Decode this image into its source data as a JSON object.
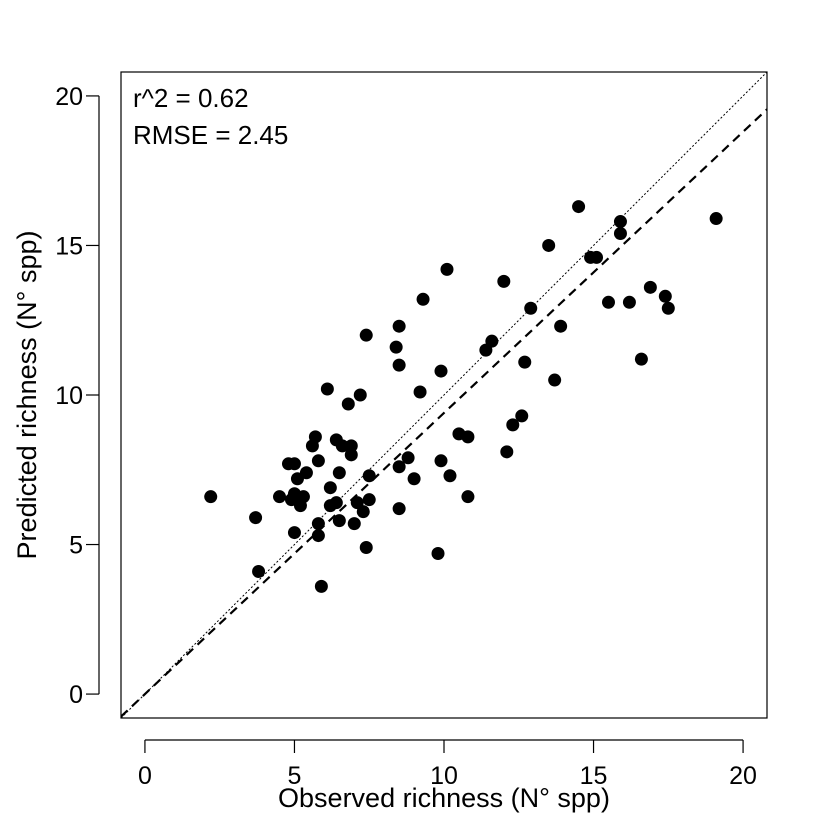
{
  "chart_data": {
    "type": "scatter",
    "xlabel": "Observed richness (N° spp)",
    "ylabel": "Predicted richness (N° spp)",
    "xlim": [
      -0.8,
      20.8
    ],
    "ylim": [
      -0.8,
      20.8
    ],
    "x_ticks": [
      0,
      5,
      10,
      15,
      20
    ],
    "y_ticks": [
      0,
      5,
      10,
      15,
      20
    ],
    "annotations": [
      "r^2 = 0.62",
      "RMSE = 2.45"
    ],
    "reference_lines": [
      {
        "style": "dotted",
        "intercept": 0,
        "slope": 1.0
      },
      {
        "style": "dashed",
        "intercept": 0,
        "slope": 0.94
      }
    ],
    "points": [
      {
        "x": 2.2,
        "y": 6.6
      },
      {
        "x": 3.7,
        "y": 5.9
      },
      {
        "x": 3.8,
        "y": 4.1
      },
      {
        "x": 4.5,
        "y": 6.6
      },
      {
        "x": 4.8,
        "y": 7.7
      },
      {
        "x": 4.9,
        "y": 6.5
      },
      {
        "x": 5.0,
        "y": 6.7
      },
      {
        "x": 5.0,
        "y": 7.7
      },
      {
        "x": 5.0,
        "y": 5.4
      },
      {
        "x": 5.1,
        "y": 7.2
      },
      {
        "x": 5.2,
        "y": 6.3
      },
      {
        "x": 5.3,
        "y": 6.6
      },
      {
        "x": 5.4,
        "y": 7.4
      },
      {
        "x": 5.6,
        "y": 8.3
      },
      {
        "x": 5.7,
        "y": 8.6
      },
      {
        "x": 5.8,
        "y": 7.8
      },
      {
        "x": 5.8,
        "y": 5.7
      },
      {
        "x": 5.8,
        "y": 5.3
      },
      {
        "x": 5.9,
        "y": 3.6
      },
      {
        "x": 6.1,
        "y": 10.2
      },
      {
        "x": 6.2,
        "y": 6.9
      },
      {
        "x": 6.2,
        "y": 6.3
      },
      {
        "x": 6.4,
        "y": 6.4
      },
      {
        "x": 6.4,
        "y": 8.5
      },
      {
        "x": 6.5,
        "y": 7.4
      },
      {
        "x": 6.6,
        "y": 8.3
      },
      {
        "x": 6.5,
        "y": 5.8
      },
      {
        "x": 6.8,
        "y": 9.7
      },
      {
        "x": 6.9,
        "y": 8.3
      },
      {
        "x": 6.9,
        "y": 8.0
      },
      {
        "x": 7.0,
        "y": 5.7
      },
      {
        "x": 7.1,
        "y": 6.4
      },
      {
        "x": 7.2,
        "y": 10.0
      },
      {
        "x": 7.3,
        "y": 6.1
      },
      {
        "x": 7.4,
        "y": 12.0
      },
      {
        "x": 7.4,
        "y": 4.9
      },
      {
        "x": 7.5,
        "y": 7.3
      },
      {
        "x": 7.5,
        "y": 6.5
      },
      {
        "x": 8.4,
        "y": 11.6
      },
      {
        "x": 8.5,
        "y": 12.3
      },
      {
        "x": 8.5,
        "y": 11.0
      },
      {
        "x": 8.5,
        "y": 7.6
      },
      {
        "x": 8.5,
        "y": 6.2
      },
      {
        "x": 8.8,
        "y": 7.9
      },
      {
        "x": 9.0,
        "y": 7.2
      },
      {
        "x": 9.2,
        "y": 10.1
      },
      {
        "x": 9.3,
        "y": 13.2
      },
      {
        "x": 9.8,
        "y": 4.7
      },
      {
        "x": 9.9,
        "y": 10.8
      },
      {
        "x": 9.9,
        "y": 7.8
      },
      {
        "x": 10.1,
        "y": 14.2
      },
      {
        "x": 10.2,
        "y": 7.3
      },
      {
        "x": 10.5,
        "y": 8.7
      },
      {
        "x": 10.8,
        "y": 8.6
      },
      {
        "x": 10.8,
        "y": 6.6
      },
      {
        "x": 11.4,
        "y": 11.5
      },
      {
        "x": 11.6,
        "y": 11.8
      },
      {
        "x": 12.0,
        "y": 13.8
      },
      {
        "x": 12.1,
        "y": 8.1
      },
      {
        "x": 12.3,
        "y": 9.0
      },
      {
        "x": 12.6,
        "y": 9.3
      },
      {
        "x": 12.7,
        "y": 11.1
      },
      {
        "x": 12.9,
        "y": 12.9
      },
      {
        "x": 13.5,
        "y": 15.0
      },
      {
        "x": 13.7,
        "y": 10.5
      },
      {
        "x": 13.9,
        "y": 12.3
      },
      {
        "x": 14.5,
        "y": 16.3
      },
      {
        "x": 14.9,
        "y": 14.6
      },
      {
        "x": 15.1,
        "y": 14.6
      },
      {
        "x": 15.5,
        "y": 13.1
      },
      {
        "x": 15.9,
        "y": 15.8
      },
      {
        "x": 15.9,
        "y": 15.4
      },
      {
        "x": 16.2,
        "y": 13.1
      },
      {
        "x": 16.6,
        "y": 11.2
      },
      {
        "x": 16.9,
        "y": 13.6
      },
      {
        "x": 17.4,
        "y": 13.3
      },
      {
        "x": 17.5,
        "y": 12.9
      },
      {
        "x": 19.1,
        "y": 15.9
      }
    ]
  }
}
